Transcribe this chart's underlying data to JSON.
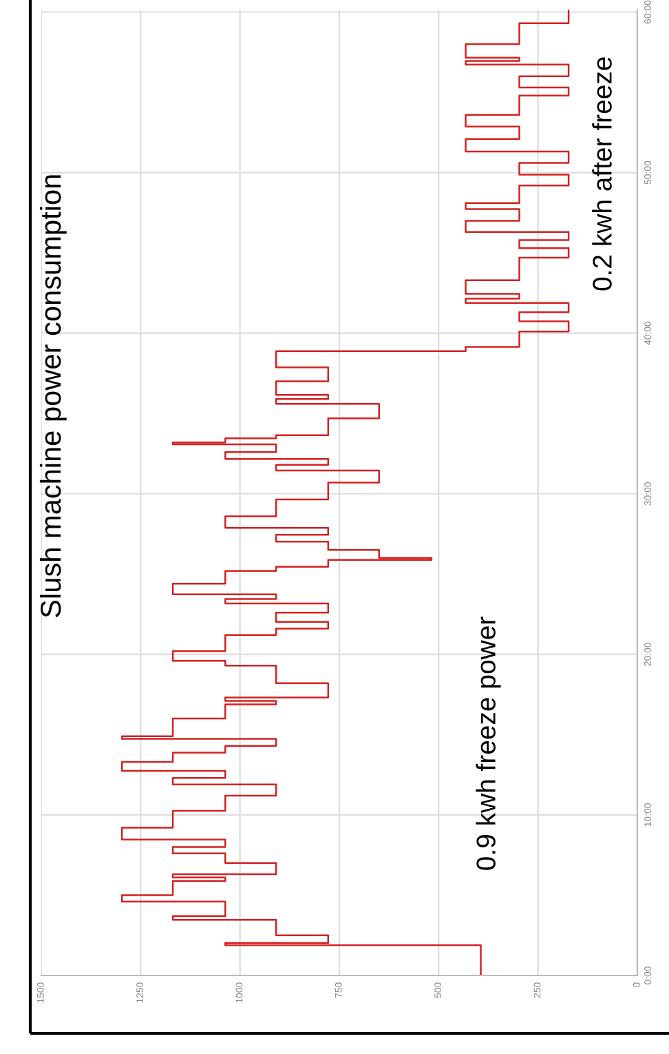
{
  "chart_data": {
    "type": "step",
    "title": "Slush machine power consumption",
    "annotations": [
      "0.9 kwh freeze power",
      "0.2 kwh after freeze"
    ],
    "x": [
      0,
      1.89,
      2.03,
      2.5,
      3.03,
      3.46,
      3.7,
      3.89,
      4.6,
      5.0,
      5.31,
      5.89,
      6.1,
      6.31,
      7.0,
      7.6,
      8.0,
      8.46,
      9.2,
      10.03,
      10.25,
      10.46,
      11.2,
      11.89,
      12.3,
      12.74,
      13.3,
      13.88,
      14.3,
      14.74,
      14.9,
      15.03,
      16.0,
      16.88,
      17.1,
      17.31,
      18.2,
      19.02,
      19.3,
      19.6,
      20.2,
      20.88,
      21.2,
      21.6,
      22.02,
      22.6,
      23.17,
      23.45,
      23.74,
      24.4,
      25.02,
      25.2,
      25.45,
      25.88,
      26.0,
      26.5,
      27.02,
      27.45,
      27.88,
      28.6,
      29.31,
      29.65,
      30.02,
      30.7,
      31.45,
      31.8,
      32.17,
      32.6,
      33.08,
      33.2,
      33.45,
      33.65,
      33.88,
      34.7,
      35.6,
      35.9,
      36.16,
      37.0,
      37.87,
      38.88,
      39.15,
      39.45,
      40.1,
      40.74,
      41.3,
      41.88,
      42.15,
      42.45,
      43.3,
      44.16,
      44.7,
      45.3,
      45.8,
      46.3,
      47.0,
      47.73,
      48.1,
      48.45,
      49.2,
      49.88,
      50.6,
      51.31,
      52.1,
      52.87,
      53.6,
      54.3,
      54.8,
      55.3,
      56.0,
      56.73,
      56.95,
      57.16,
      58.0,
      58.87,
      59.3,
      59.73,
      60.15
    ],
    "values": [
      394,
      1037,
      778,
      909,
      909,
      1169,
      1037,
      1037,
      1297,
      1169,
      1169,
      1037,
      1169,
      909,
      1037,
      1169,
      1037,
      1297,
      1169,
      1169,
      1037,
      1037,
      909,
      1169,
      1037,
      1297,
      1169,
      1037,
      909,
      1297,
      1169,
      1169,
      1037,
      909,
      1037,
      778,
      909,
      909,
      1037,
      1169,
      1037,
      1037,
      909,
      778,
      909,
      778,
      1037,
      909,
      1169,
      1037,
      1037,
      909,
      778,
      518,
      650,
      778,
      909,
      778,
      1037,
      909,
      909,
      778,
      778,
      650,
      909,
      778,
      1037,
      909,
      1169,
      1037,
      909,
      778,
      778,
      650,
      909,
      778,
      909,
      778,
      909,
      432,
      297,
      297,
      173,
      297,
      173,
      432,
      297,
      432,
      297,
      297,
      173,
      297,
      173,
      432,
      297,
      432,
      297,
      297,
      173,
      297,
      173,
      432,
      297,
      432,
      297,
      297,
      173,
      297,
      173,
      432,
      297,
      432,
      297,
      297,
      173,
      173,
      173
    ],
    "color": "#d32222",
    "orientation": "horizontal",
    "ylim": [
      0,
      60.15
    ],
    "yticks": [
      {
        "value": 0,
        "label": "0:00"
      },
      {
        "value": 10,
        "label": "10:00"
      },
      {
        "value": 20,
        "label": "20:00"
      },
      {
        "value": 30,
        "label": "30:00"
      },
      {
        "value": 40,
        "label": "40:00"
      },
      {
        "value": 50,
        "label": "50:00"
      },
      {
        "value": 60,
        "label": "60:00"
      }
    ],
    "xlim": [
      1500,
      0
    ],
    "xticks": [
      1500,
      1250,
      1000,
      750,
      500,
      250,
      0
    ],
    "grid": true
  }
}
